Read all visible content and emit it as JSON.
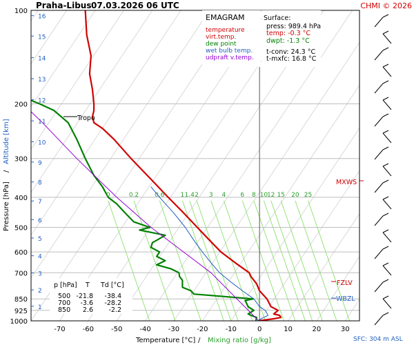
{
  "header": {
    "station": "Praha-Libus",
    "datetime": "07.03.2026 06 UTC",
    "copyright": "CHMI © 2026"
  },
  "legend": {
    "title": "EMAGRAM",
    "items": [
      {
        "label": "temperature",
        "color": "#d00000"
      },
      {
        "label": "virt.temp.",
        "color": "#d00000"
      },
      {
        "label": "dew point",
        "color": "#008000"
      },
      {
        "label": "wet bulb temp.",
        "color": "#1f5fc0"
      },
      {
        "label": "udpraft v.temp.",
        "color": "#9400d3"
      }
    ]
  },
  "surface_box": {
    "heading": "Surface:",
    "press": "press: 989.4 hPa",
    "temp": "temp: -0.3 °C",
    "dwpt": "dwpt: -1.3 °C",
    "tconv": "t-conv: 24.3 °C",
    "tmxfc": "t-mxfc: 16.8 °C"
  },
  "table": {
    "headers": [
      "p [hPa]",
      "T",
      "Td [°C]"
    ],
    "rows": [
      [
        "500",
        "-21.8",
        "-38.4"
      ],
      [
        "700",
        "-3.6",
        "-28.2"
      ],
      [
        "850",
        "2.6",
        "-2.2"
      ]
    ]
  },
  "labels": {
    "tropo": "Tropo",
    "mxws": "MXWS",
    "fzlv": "FZLV",
    "wbzl": "WBZL",
    "sfc": "SFC: 304 m ASL"
  },
  "axes": {
    "xlabel_temp": "Temperature [°C]",
    "xlabel_sep": "/",
    "xlabel_mix": "Mixing ratio [g/kg]",
    "ylabel_p": "Pressure [hPa]",
    "ylabel_sep": "/",
    "ylabel_alt": "Altitude [km]"
  },
  "colors": {
    "temperature": "#d00000",
    "dewpoint": "#008000",
    "wetbulb": "#1f5fc0",
    "parcel": "#9400d3",
    "mixing": "#7ddc5a",
    "isobar": "#bdbdbd",
    "adiabat": "#d0d0d0"
  },
  "chart_data": {
    "type": "line",
    "diagram": "emagram",
    "xlim": [
      -80,
      35
    ],
    "ylim_hpa": [
      1000,
      100
    ],
    "y_scale": "log",
    "x_ticks": [
      -70,
      -60,
      -50,
      -40,
      -30,
      -20,
      -10,
      0,
      10,
      20,
      30
    ],
    "p_ticks": [
      100,
      200,
      300,
      400,
      500,
      600,
      700,
      850,
      925,
      1000
    ],
    "altitude_ticks": [
      {
        "km": 1,
        "p": 897
      },
      {
        "km": 2,
        "p": 795
      },
      {
        "km": 3,
        "p": 701
      },
      {
        "km": 4,
        "p": 617
      },
      {
        "km": 5,
        "p": 541
      },
      {
        "km": 6,
        "p": 472
      },
      {
        "km": 7,
        "p": 411
      },
      {
        "km": 8,
        "p": 357
      },
      {
        "km": 9,
        "p": 308
      },
      {
        "km": 10,
        "p": 265
      },
      {
        "km": 11,
        "p": 227
      },
      {
        "km": 12,
        "p": 194
      },
      {
        "km": 13,
        "p": 166
      },
      {
        "km": 14,
        "p": 142
      },
      {
        "km": 15,
        "p": 121
      },
      {
        "km": 16,
        "p": 104
      }
    ],
    "mixing_ratio_labels": [
      {
        "text": "0",
        "t": -53
      },
      {
        "text": "0.2",
        "t": -44
      },
      {
        "text": "0.6",
        "t": -35
      },
      {
        "text": "1",
        "t": -27
      },
      {
        "text": "1.4",
        "t": -24.5
      },
      {
        "text": "2",
        "t": -22
      },
      {
        "text": "3",
        "t": -17
      },
      {
        "text": "4",
        "t": -12.5
      },
      {
        "text": "6",
        "t": -6
      },
      {
        "text": "8",
        "t": -2
      },
      {
        "text": "10",
        "t": 1.5
      },
      {
        "text": "12",
        "t": 4
      },
      {
        "text": "15",
        "t": 7.5
      },
      {
        "text": "20",
        "t": 12.5
      },
      {
        "text": "25",
        "t": 17
      }
    ],
    "series": [
      {
        "name": "temperature",
        "points": [
          [
            1000,
            -0.3
          ],
          [
            985,
            5
          ],
          [
            975,
            7.5
          ],
          [
            960,
            7
          ],
          [
            950,
            5
          ],
          [
            925,
            6.5
          ],
          [
            900,
            4
          ],
          [
            850,
            2.6
          ],
          [
            800,
            0
          ],
          [
            760,
            -1
          ],
          [
            720,
            -3
          ],
          [
            700,
            -3.6
          ],
          [
            650,
            -8.5
          ],
          [
            600,
            -13.5
          ],
          [
            550,
            -17.5
          ],
          [
            500,
            -21.8
          ],
          [
            450,
            -26.5
          ],
          [
            400,
            -32
          ],
          [
            350,
            -38
          ],
          [
            300,
            -45
          ],
          [
            260,
            -51
          ],
          [
            240,
            -55
          ],
          [
            230,
            -58
          ],
          [
            220,
            -58.5
          ],
          [
            210,
            -58
          ],
          [
            200,
            -58
          ],
          [
            180,
            -58.5
          ],
          [
            160,
            -59.5
          ],
          [
            140,
            -59
          ],
          [
            120,
            -60.5
          ],
          [
            100,
            -61
          ]
        ]
      },
      {
        "name": "dew point",
        "points": [
          [
            1000,
            -1.3
          ],
          [
            975,
            -1
          ],
          [
            960,
            -3
          ],
          [
            950,
            -4
          ],
          [
            925,
            -2
          ],
          [
            900,
            -4
          ],
          [
            860,
            -5
          ],
          [
            850,
            -2.2
          ],
          [
            820,
            -23
          ],
          [
            800,
            -24
          ],
          [
            780,
            -27
          ],
          [
            740,
            -27
          ],
          [
            720,
            -28
          ],
          [
            700,
            -28.2
          ],
          [
            680,
            -31
          ],
          [
            660,
            -36
          ],
          [
            640,
            -33
          ],
          [
            620,
            -36
          ],
          [
            600,
            -35
          ],
          [
            580,
            -38
          ],
          [
            560,
            -37.5
          ],
          [
            550,
            -36
          ],
          [
            530,
            -33
          ],
          [
            510,
            -42
          ],
          [
            500,
            -38.4
          ],
          [
            480,
            -44
          ],
          [
            450,
            -47
          ],
          [
            420,
            -50
          ],
          [
            400,
            -53
          ],
          [
            370,
            -55
          ],
          [
            340,
            -58
          ],
          [
            300,
            -61
          ],
          [
            260,
            -64
          ],
          [
            230,
            -67
          ],
          [
            210,
            -72
          ],
          [
            200,
            -77
          ],
          [
            195,
            -80
          ]
        ]
      },
      {
        "name": "wet bulb temp.",
        "points": [
          [
            1000,
            -0.8
          ],
          [
            960,
            3
          ],
          [
            925,
            2
          ],
          [
            900,
            0
          ],
          [
            850,
            -2
          ],
          [
            800,
            -6
          ],
          [
            750,
            -10
          ],
          [
            700,
            -14
          ],
          [
            650,
            -17
          ],
          [
            600,
            -20
          ],
          [
            550,
            -23
          ],
          [
            500,
            -26
          ],
          [
            450,
            -30
          ],
          [
            400,
            -35
          ],
          [
            370,
            -38
          ]
        ]
      },
      {
        "name": "udpraft v.temp.",
        "points": [
          [
            1000,
            -0.3
          ],
          [
            700,
            -17
          ],
          [
            500,
            -38
          ],
          [
            400,
            -50
          ],
          [
            300,
            -64
          ],
          [
            230,
            -76
          ],
          [
            212,
            -80
          ]
        ]
      }
    ]
  }
}
